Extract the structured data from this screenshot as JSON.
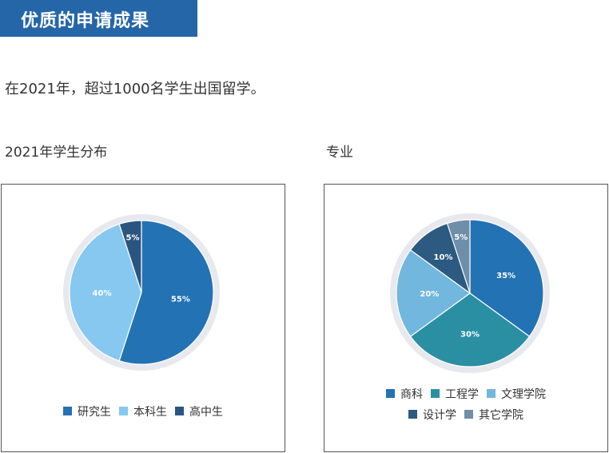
{
  "header": {
    "title": "优质的申请成果"
  },
  "intro": "在2021年，超过1000名学生出国留学。",
  "chart_data": [
    {
      "type": "pie",
      "title": "2021年学生分布",
      "labels": [
        "研究生",
        "本科生",
        "高中生"
      ],
      "values": [
        55,
        40,
        5
      ],
      "value_labels": [
        "55%",
        "40%",
        "5%"
      ],
      "colors": [
        "#2272b4",
        "#86c8ef",
        "#2b5580"
      ]
    },
    {
      "type": "pie",
      "title": "专业",
      "labels": [
        "商科",
        "工程学",
        "文理学院",
        "设计学",
        "其它学院"
      ],
      "values": [
        35,
        30,
        20,
        10,
        5
      ],
      "value_labels": [
        "35%",
        "30%",
        "20%",
        "10%",
        "5%"
      ],
      "colors": [
        "#2272b4",
        "#2b8fa3",
        "#72b7dd",
        "#2c5a80",
        "#6f8ea8"
      ]
    }
  ],
  "legend_rows": [
    [
      [
        0,
        1,
        2
      ]
    ],
    [
      [
        0,
        1,
        2
      ],
      [
        3,
        4
      ]
    ]
  ]
}
